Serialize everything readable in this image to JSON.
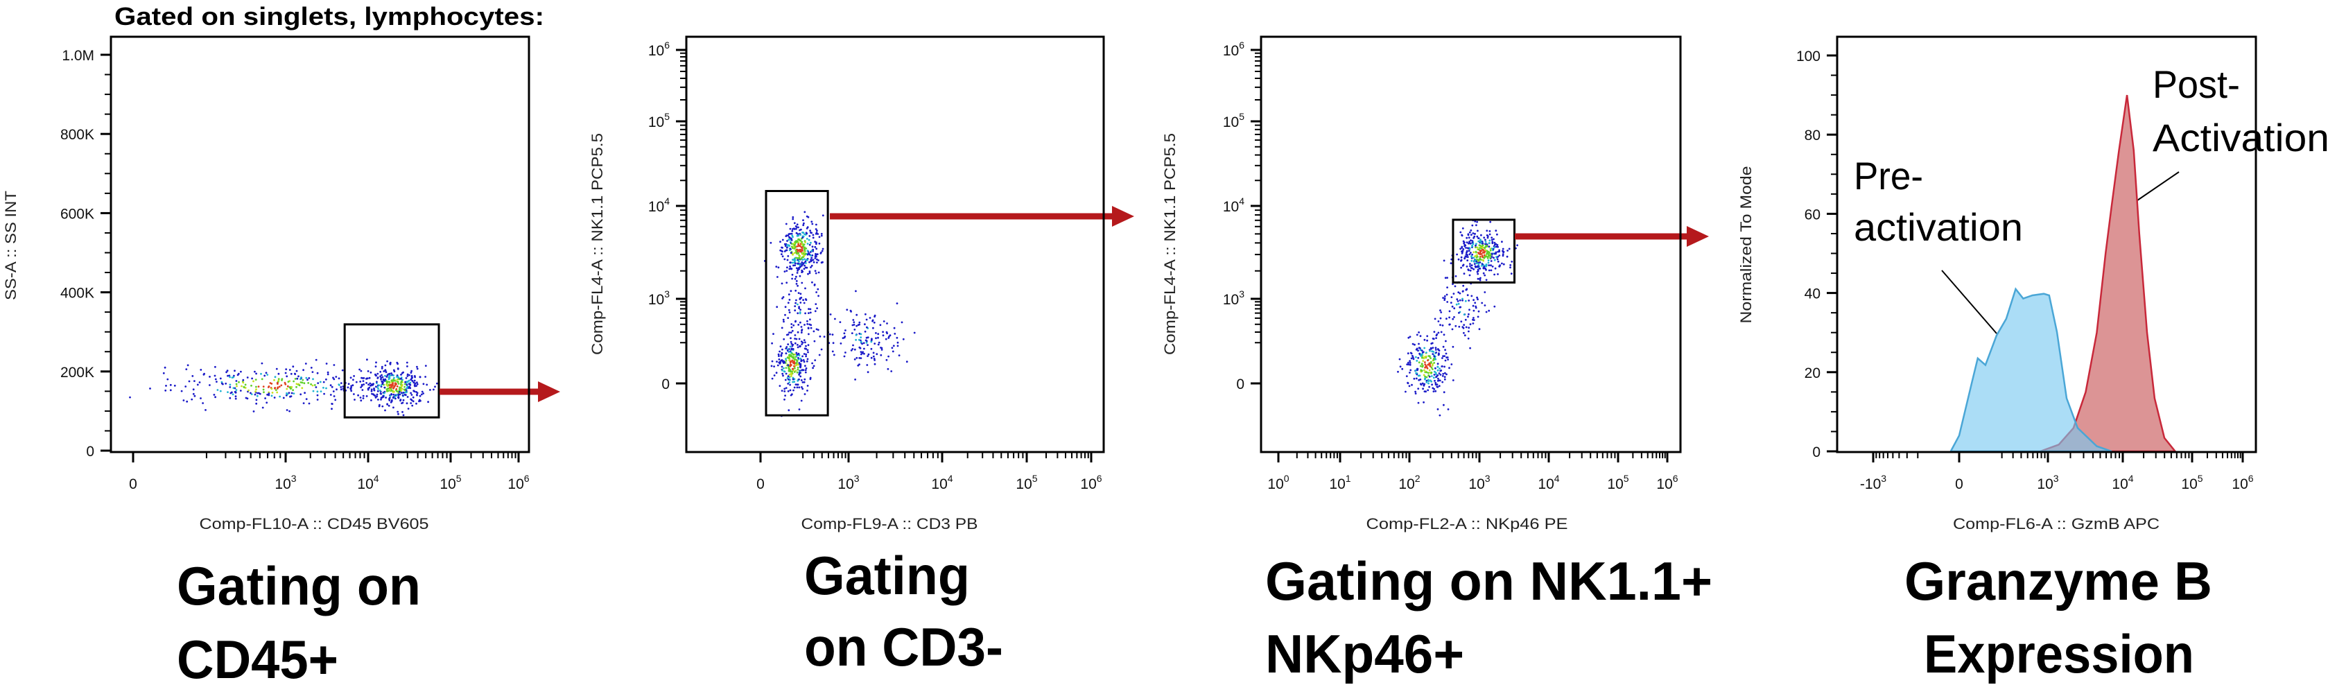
{
  "figure_title": "Gated on singlets, lymphocytes:",
  "colors": {
    "arrow": "#b5191c",
    "pre_activation_fill": "#78c8f0",
    "pre_activation_line": "#4aa6d6",
    "post_activation_fill": "#dc9495",
    "post_activation_line": "#c8283a",
    "dot_low": "#1a1ac8",
    "dot_mid": "#1eb4d2",
    "dot_high": "#5fd12a",
    "dot_peak": "#e0401e"
  },
  "chart_data": [
    {
      "type": "scatter",
      "xlabel": "Comp-FL10-A :: CD45 BV605",
      "ylabel": "SS-A :: SS INT",
      "x_scale": "biexponential",
      "y_scale": "linear",
      "ylim": [
        0,
        1045000
      ],
      "xticks": [
        {
          "value": 0,
          "base": "0"
        },
        {
          "value": 1000,
          "base": "10",
          "exp": "3"
        },
        {
          "value": 10000,
          "base": "10",
          "exp": "4"
        },
        {
          "value": 100000,
          "base": "10",
          "exp": "5"
        },
        {
          "value": 1000000,
          "base": "10",
          "exp": "6"
        }
      ],
      "yticks": [
        {
          "value": 0,
          "base": "0"
        },
        {
          "value": 200000,
          "base": "200K"
        },
        {
          "value": 400000,
          "base": "400K"
        },
        {
          "value": 600000,
          "base": "600K"
        },
        {
          "value": 800000,
          "base": "800K"
        },
        {
          "value": 1000000,
          "base": "1.0M"
        }
      ],
      "gate": {
        "x": [
          5200,
          72000
        ],
        "y": [
          84000,
          319000
        ]
      },
      "populations": [
        {
          "x": 21000,
          "y": 163000,
          "events": 360
        },
        {
          "x": 800,
          "y": 165000,
          "events": 300
        }
      ],
      "caption": [
        "Gating on",
        "CD45+"
      ]
    },
    {
      "type": "scatter",
      "xlabel": "Comp-FL9-A :: CD3 PB",
      "ylabel": "Comp-FL4-A :: NK1.1 PCP5.5",
      "x_scale": "biexponential",
      "y_scale": "biexponential",
      "xticks": [
        {
          "value": 0,
          "base": "0"
        },
        {
          "value": 1000,
          "base": "10",
          "exp": "3"
        },
        {
          "value": 10000,
          "base": "10",
          "exp": "4"
        },
        {
          "value": 100000,
          "base": "10",
          "exp": "5"
        },
        {
          "value": 1000000,
          "base": "10",
          "exp": "6"
        }
      ],
      "yticks": [
        {
          "value": 0,
          "base": "0"
        },
        {
          "value": 1000,
          "base": "10",
          "exp": "3"
        },
        {
          "value": 10000,
          "base": "10",
          "exp": "4"
        },
        {
          "value": 100000,
          "base": "10",
          "exp": "5"
        },
        {
          "value": 1000000,
          "base": "10",
          "exp": "6"
        }
      ],
      "gate": {
        "x": [
          19,
          490
        ],
        "y": [
          -139,
          15000
        ]
      },
      "populations": [
        {
          "x": 175,
          "y": 3500,
          "events": 330
        },
        {
          "x": 130,
          "y": 70,
          "events": 270
        },
        {
          "x": 1500,
          "y": 250,
          "events": 140
        },
        {
          "x": 180,
          "y": 600,
          "events": 90
        }
      ],
      "caption": [
        "Gating",
        "on CD3-"
      ]
    },
    {
      "type": "scatter",
      "xlabel": "Comp-FL2-A :: NKp46 PE",
      "ylabel": "Comp-FL4-A :: NK1.1 PCP5.5",
      "x_scale": "log",
      "y_scale": "biexponential",
      "xticks": [
        {
          "value": 1,
          "base": "10",
          "exp": "0"
        },
        {
          "value": 10,
          "base": "10",
          "exp": "1"
        },
        {
          "value": 100,
          "base": "10",
          "exp": "2"
        },
        {
          "value": 1000,
          "base": "10",
          "exp": "3"
        },
        {
          "value": 10000,
          "base": "10",
          "exp": "4"
        },
        {
          "value": 100000,
          "base": "10",
          "exp": "5"
        },
        {
          "value": 1000000,
          "base": "10",
          "exp": "6"
        }
      ],
      "yticks": [
        {
          "value": 0,
          "base": "0"
        },
        {
          "value": 1000,
          "base": "10",
          "exp": "3"
        },
        {
          "value": 10000,
          "base": "10",
          "exp": "4"
        },
        {
          "value": 100000,
          "base": "10",
          "exp": "5"
        },
        {
          "value": 1000000,
          "base": "10",
          "exp": "6"
        }
      ],
      "gate": {
        "x": [
          420,
          3200
        ],
        "y": [
          1500,
          7100
        ]
      },
      "populations": [
        {
          "x": 1100,
          "y": 3100,
          "events": 330
        },
        {
          "x": 180,
          "y": 70,
          "events": 260
        },
        {
          "x": 550,
          "y": 800,
          "events": 110
        }
      ],
      "caption": [
        "Gating on NK1.1+",
        "NKp46+"
      ]
    },
    {
      "type": "area",
      "xlabel": "Comp-FL6-A :: GzmB APC",
      "ylabel": "Normalized To Mode",
      "x_scale": "biexponential",
      "y_scale": "linear",
      "ylim": [
        0,
        105
      ],
      "xticks": [
        {
          "value": -1000,
          "base": "-10",
          "exp": "3"
        },
        {
          "value": 0,
          "base": "0"
        },
        {
          "value": 1000,
          "base": "10",
          "exp": "3"
        },
        {
          "value": 10000,
          "base": "10",
          "exp": "4"
        },
        {
          "value": 100000,
          "base": "10",
          "exp": "5"
        },
        {
          "value": 1000000,
          "base": "10",
          "exp": "6"
        }
      ],
      "yticks": [
        {
          "value": 0,
          "base": "0"
        },
        {
          "value": 20,
          "base": "20"
        },
        {
          "value": 40,
          "base": "40"
        },
        {
          "value": 60,
          "base": "60"
        },
        {
          "value": 80,
          "base": "80"
        },
        {
          "value": 100,
          "base": "100"
        }
      ],
      "series": [
        {
          "label_lines": [
            "Pre-",
            "activation"
          ],
          "x": [
            -30,
            0,
            45,
            67,
            101,
            163,
            235,
            330,
            430,
            590,
            870,
            1040,
            1320,
            1780,
            2500,
            4500,
            7100
          ],
          "y": [
            0,
            4,
            17.6,
            23.5,
            21.8,
            29.3,
            33.5,
            41,
            38.6,
            39.4,
            39.8,
            39.4,
            30.2,
            13.4,
            5.9,
            1.3,
            0
          ]
        },
        {
          "label_lines": [
            "Post-",
            "Activation"
          ],
          "x": [
            770,
            1400,
            2200,
            3200,
            4500,
            5900,
            7100,
            8900,
            11500,
            14400,
            17300,
            22400,
            28800,
            39800,
            57000
          ],
          "y": [
            0,
            1.7,
            5.9,
            15,
            30,
            50,
            62,
            76,
            90,
            76,
            55,
            30,
            13.4,
            3.4,
            0
          ]
        }
      ],
      "caption": [
        "Granzyme B",
        "Expression"
      ]
    }
  ]
}
